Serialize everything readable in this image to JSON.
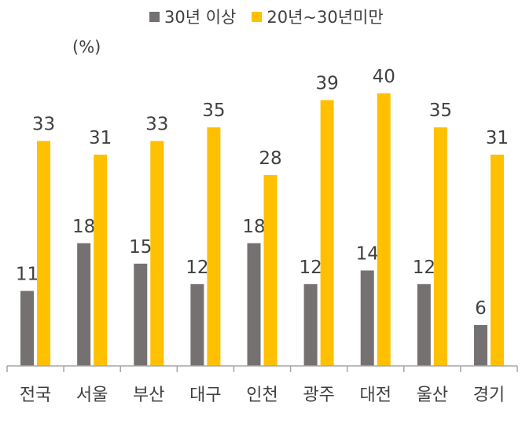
{
  "chart_data": {
    "type": "bar",
    "unit_label": "(%)",
    "categories": [
      "전국",
      "서울",
      "부산",
      "대구",
      "인천",
      "광주",
      "대전",
      "울산",
      "경기"
    ],
    "series": [
      {
        "name": "30년 이상",
        "color": "#767171",
        "values": [
          11,
          18,
          15,
          12,
          18,
          12,
          14,
          12,
          6
        ]
      },
      {
        "name": "20년~30년미만",
        "color": "#FFC000",
        "values": [
          33,
          31,
          33,
          35,
          28,
          39,
          40,
          35,
          31
        ]
      }
    ],
    "ylim": [
      0,
      42
    ],
    "grid": false,
    "legend_position": "top"
  }
}
